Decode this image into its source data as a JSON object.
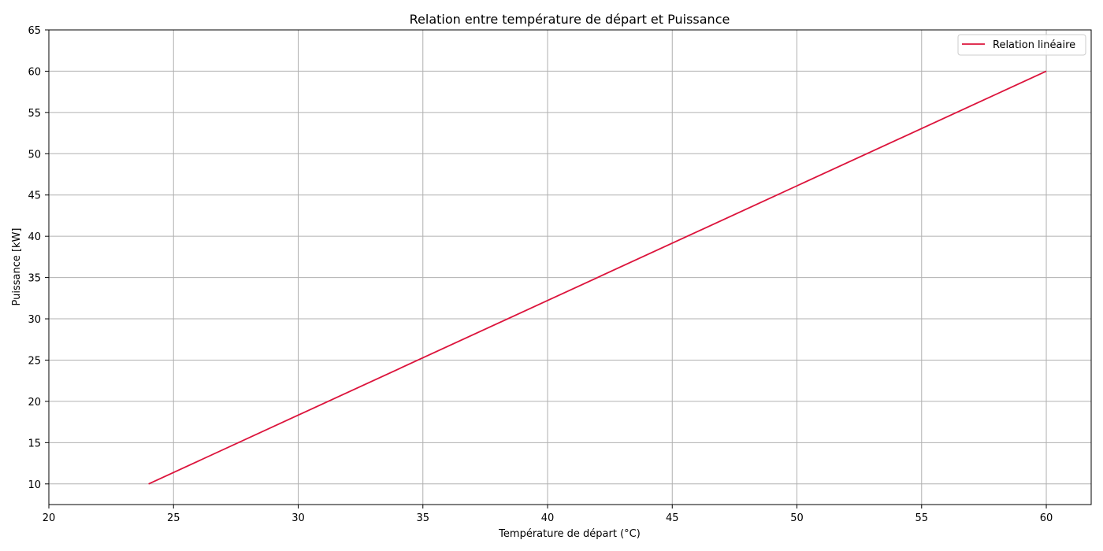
{
  "chart_data": {
    "type": "line",
    "title": "Relation entre température de départ et Puissance",
    "xlabel": "Température de départ (°C)",
    "ylabel": "Puissance [kW]",
    "xlim": [
      20,
      61.8
    ],
    "ylim": [
      7.5,
      65
    ],
    "xticks": [
      20,
      25,
      30,
      35,
      40,
      45,
      50,
      55,
      60
    ],
    "yticks": [
      10,
      15,
      20,
      25,
      30,
      35,
      40,
      45,
      50,
      55,
      60,
      65
    ],
    "grid": true,
    "legend_position": "top-right",
    "series": [
      {
        "name": "Relation linéaire",
        "color": "#dc143c",
        "x": [
          24,
          60
        ],
        "y": [
          10,
          60
        ]
      }
    ]
  }
}
